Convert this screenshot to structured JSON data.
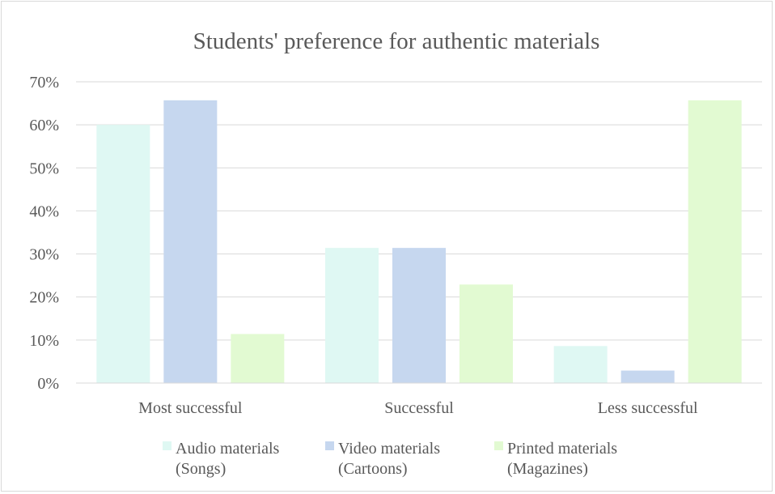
{
  "chart_data": {
    "type": "bar",
    "title": "Students' preference for authentic materials",
    "xlabel": "",
    "ylabel": "",
    "categories": [
      "Most successful",
      "Successful",
      "Less successful"
    ],
    "series": [
      {
        "name_lines": [
          "Audio materials",
          "(Songs)"
        ],
        "color": "#dff8f3",
        "values": [
          60,
          31.4,
          8.6
        ]
      },
      {
        "name_lines": [
          "Video materials",
          "(Cartoons)"
        ],
        "color": "#c6d7ef",
        "values": [
          65.7,
          31.4,
          2.9
        ]
      },
      {
        "name_lines": [
          "Printed materials",
          "(Magazines)"
        ],
        "color": "#e2fad2",
        "values": [
          11.4,
          22.9,
          65.7
        ]
      }
    ],
    "yticks": [
      "0%",
      "10%",
      "20%",
      "30%",
      "40%",
      "50%",
      "60%",
      "70%"
    ],
    "ylim": [
      0,
      70
    ],
    "value_unit": "%",
    "grid": true,
    "legend_position": "bottom"
  }
}
